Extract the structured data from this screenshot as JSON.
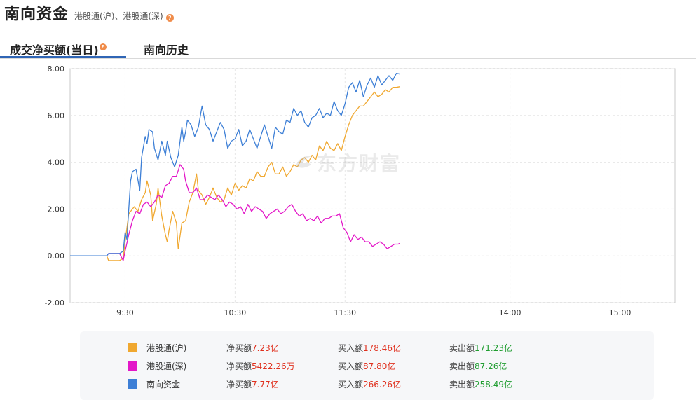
{
  "header": {
    "title": "南向资金",
    "subtitle": "港股通(沪)、港股通(深)"
  },
  "tabs": [
    {
      "label": "成交净买额(当日)",
      "active": true
    },
    {
      "label": "南向历史",
      "active": false
    }
  ],
  "watermark": "东方财富",
  "colors": {
    "sh": "#f0a830",
    "sz": "#e318c8",
    "total": "#3d7fd6",
    "accent": "#2f65b5",
    "up": "#e0301e",
    "down": "#1f9d30"
  },
  "chart_data": {
    "type": "line",
    "ylim": [
      -2,
      8
    ],
    "yticks": [
      "8.00",
      "6.00",
      "4.00",
      "2.00",
      "0.00",
      "-2.00"
    ],
    "xticks": [
      "9:30",
      "10:30",
      "11:30",
      "14:00",
      "15:00"
    ],
    "x_note": "minutes of trading session: 0=9:00, 30=9:30 open, 180=12:00 lunch break (== 13:00), 240=14:00, 300=15:00, 330=end",
    "series": [
      {
        "name": "港股通(沪)",
        "color": "#f0a830",
        "points": [
          [
            0,
            0
          ],
          [
            20,
            0
          ],
          [
            21,
            -0.2
          ],
          [
            27,
            -0.2
          ],
          [
            29,
            -0.1
          ],
          [
            30,
            0.6
          ],
          [
            32,
            1.8
          ],
          [
            35,
            2.1
          ],
          [
            37,
            1.9
          ],
          [
            39,
            2.4
          ],
          [
            41,
            2.7
          ],
          [
            42,
            3.2
          ],
          [
            44,
            2.6
          ],
          [
            45,
            1.5
          ],
          [
            47,
            2.2
          ],
          [
            48,
            2.9
          ],
          [
            50,
            1.7
          ],
          [
            52,
            0.9
          ],
          [
            53,
            0.6
          ],
          [
            54,
            1.1
          ],
          [
            56,
            1.9
          ],
          [
            58,
            1.4
          ],
          [
            59,
            0.3
          ],
          [
            61,
            1.4
          ],
          [
            63,
            1.5
          ],
          [
            65,
            2.3
          ],
          [
            67,
            2.7
          ],
          [
            69,
            3.5
          ],
          [
            70,
            2.8
          ],
          [
            72,
            2.6
          ],
          [
            74,
            2.2
          ],
          [
            76,
            2.5
          ],
          [
            78,
            2.9
          ],
          [
            80,
            2.5
          ],
          [
            82,
            2.3
          ],
          [
            84,
            2.4
          ],
          [
            86,
            2.9
          ],
          [
            88,
            2.6
          ],
          [
            90,
            3.1
          ],
          [
            92,
            2.8
          ],
          [
            94,
            3.0
          ],
          [
            96,
            2.9
          ],
          [
            98,
            3.3
          ],
          [
            100,
            3.2
          ],
          [
            102,
            3.6
          ],
          [
            104,
            3.4
          ],
          [
            106,
            3.4
          ],
          [
            108,
            3.8
          ],
          [
            110,
            4.0
          ],
          [
            112,
            3.5
          ],
          [
            114,
            3.5
          ],
          [
            116,
            3.8
          ],
          [
            118,
            3.4
          ],
          [
            120,
            3.6
          ],
          [
            122,
            3.9
          ],
          [
            124,
            3.8
          ],
          [
            126,
            4.1
          ],
          [
            128,
            4.2
          ],
          [
            130,
            4.0
          ],
          [
            132,
            4.3
          ],
          [
            134,
            4.1
          ],
          [
            136,
            4.7
          ],
          [
            138,
            4.5
          ],
          [
            140,
            4.9
          ],
          [
            142,
            4.6
          ],
          [
            144,
            4.5
          ],
          [
            146,
            4.8
          ],
          [
            148,
            4.5
          ],
          [
            150,
            5.1
          ],
          [
            152,
            5.6
          ],
          [
            154,
            6.0
          ],
          [
            156,
            6.2
          ],
          [
            158,
            6.4
          ],
          [
            160,
            6.4
          ],
          [
            162,
            6.6
          ],
          [
            164,
            6.8
          ],
          [
            166,
            7.0
          ],
          [
            168,
            6.8
          ],
          [
            170,
            6.9
          ],
          [
            172,
            7.1
          ],
          [
            174,
            7.0
          ],
          [
            176,
            7.2
          ],
          [
            178,
            7.2
          ],
          [
            180,
            7.23
          ]
        ]
      },
      {
        "name": "港股通(深)",
        "color": "#e318c8",
        "points": [
          [
            0,
            0
          ],
          [
            20,
            0
          ],
          [
            21,
            0.1
          ],
          [
            27,
            0.1
          ],
          [
            29,
            -0.2
          ],
          [
            30,
            0.2
          ],
          [
            32,
            0.9
          ],
          [
            34,
            1.5
          ],
          [
            36,
            1.9
          ],
          [
            38,
            1.8
          ],
          [
            40,
            2.2
          ],
          [
            42,
            2.3
          ],
          [
            44,
            2.1
          ],
          [
            46,
            2.3
          ],
          [
            48,
            2.6
          ],
          [
            50,
            2.5
          ],
          [
            52,
            3.0
          ],
          [
            54,
            3.1
          ],
          [
            56,
            3.4
          ],
          [
            58,
            3.4
          ],
          [
            60,
            3.9
          ],
          [
            62,
            3.7
          ],
          [
            63,
            3.2
          ],
          [
            65,
            2.7
          ],
          [
            67,
            2.7
          ],
          [
            69,
            2.9
          ],
          [
            71,
            2.4
          ],
          [
            73,
            2.4
          ],
          [
            75,
            2.6
          ],
          [
            77,
            2.5
          ],
          [
            79,
            2.4
          ],
          [
            81,
            2.6
          ],
          [
            83,
            2.4
          ],
          [
            85,
            2.1
          ],
          [
            87,
            2.3
          ],
          [
            89,
            2.2
          ],
          [
            91,
            2.0
          ],
          [
            93,
            2.1
          ],
          [
            95,
            1.8
          ],
          [
            97,
            2.2
          ],
          [
            99,
            1.9
          ],
          [
            101,
            2.1
          ],
          [
            103,
            2.0
          ],
          [
            105,
            1.9
          ],
          [
            107,
            1.6
          ],
          [
            109,
            1.8
          ],
          [
            111,
            1.9
          ],
          [
            113,
            2.0
          ],
          [
            115,
            1.8
          ],
          [
            117,
            1.9
          ],
          [
            119,
            2.1
          ],
          [
            121,
            2.2
          ],
          [
            123,
            1.9
          ],
          [
            125,
            1.7
          ],
          [
            127,
            1.8
          ],
          [
            129,
            1.5
          ],
          [
            131,
            1.6
          ],
          [
            133,
            1.5
          ],
          [
            135,
            1.7
          ],
          [
            137,
            1.4
          ],
          [
            139,
            1.6
          ],
          [
            141,
            1.6
          ],
          [
            143,
            1.7
          ],
          [
            145,
            1.7
          ],
          [
            147,
            1.8
          ],
          [
            149,
            1.2
          ],
          [
            151,
            1.0
          ],
          [
            153,
            0.6
          ],
          [
            155,
            0.9
          ],
          [
            157,
            0.7
          ],
          [
            159,
            0.8
          ],
          [
            161,
            0.6
          ],
          [
            163,
            0.6
          ],
          [
            165,
            0.4
          ],
          [
            167,
            0.5
          ],
          [
            169,
            0.6
          ],
          [
            171,
            0.5
          ],
          [
            173,
            0.3
          ],
          [
            175,
            0.4
          ],
          [
            177,
            0.5
          ],
          [
            179,
            0.5
          ],
          [
            180,
            0.54
          ]
        ]
      },
      {
        "name": "南向资金",
        "color": "#3d7fd6",
        "points": [
          [
            0,
            0
          ],
          [
            20,
            0
          ],
          [
            21,
            0.1
          ],
          [
            27,
            0.1
          ],
          [
            29,
            0.2
          ],
          [
            30,
            1.0
          ],
          [
            31,
            0.7
          ],
          [
            32,
            2.0
          ],
          [
            33,
            3.2
          ],
          [
            34,
            3.6
          ],
          [
            36,
            3.7
          ],
          [
            38,
            2.8
          ],
          [
            39,
            4.2
          ],
          [
            41,
            5.1
          ],
          [
            42,
            4.8
          ],
          [
            43,
            5.4
          ],
          [
            45,
            5.3
          ],
          [
            46,
            4.6
          ],
          [
            48,
            4.1
          ],
          [
            50,
            4.9
          ],
          [
            52,
            4.3
          ],
          [
            53,
            4.9
          ],
          [
            55,
            4.2
          ],
          [
            57,
            3.8
          ],
          [
            59,
            4.3
          ],
          [
            61,
            5.5
          ],
          [
            62,
            4.9
          ],
          [
            63,
            5.3
          ],
          [
            64,
            5.8
          ],
          [
            66,
            5.6
          ],
          [
            68,
            5.1
          ],
          [
            70,
            5.5
          ],
          [
            72,
            6.4
          ],
          [
            74,
            5.6
          ],
          [
            76,
            5.4
          ],
          [
            78,
            4.9
          ],
          [
            80,
            5.3
          ],
          [
            82,
            5.7
          ],
          [
            84,
            5.4
          ],
          [
            86,
            4.6
          ],
          [
            88,
            4.9
          ],
          [
            90,
            5.0
          ],
          [
            92,
            5.4
          ],
          [
            94,
            4.7
          ],
          [
            96,
            4.9
          ],
          [
            98,
            5.4
          ],
          [
            100,
            5.0
          ],
          [
            102,
            4.6
          ],
          [
            104,
            5.1
          ],
          [
            106,
            5.6
          ],
          [
            108,
            5.1
          ],
          [
            110,
            4.6
          ],
          [
            112,
            5.5
          ],
          [
            114,
            5.3
          ],
          [
            116,
            5.2
          ],
          [
            118,
            5.8
          ],
          [
            120,
            5.7
          ],
          [
            122,
            6.3
          ],
          [
            124,
            6.0
          ],
          [
            126,
            6.2
          ],
          [
            128,
            5.7
          ],
          [
            130,
            5.5
          ],
          [
            132,
            5.9
          ],
          [
            134,
            6.0
          ],
          [
            136,
            6.3
          ],
          [
            138,
            5.9
          ],
          [
            140,
            6.1
          ],
          [
            142,
            6.0
          ],
          [
            144,
            6.6
          ],
          [
            146,
            6.2
          ],
          [
            148,
            6.0
          ],
          [
            150,
            6.5
          ],
          [
            152,
            7.2
          ],
          [
            154,
            7.4
          ],
          [
            156,
            7.0
          ],
          [
            158,
            7.5
          ],
          [
            160,
            6.8
          ],
          [
            162,
            7.3
          ],
          [
            164,
            7.6
          ],
          [
            166,
            7.2
          ],
          [
            168,
            7.7
          ],
          [
            170,
            7.3
          ],
          [
            172,
            7.5
          ],
          [
            174,
            7.7
          ],
          [
            176,
            7.5
          ],
          [
            178,
            7.8
          ],
          [
            180,
            7.77
          ]
        ]
      }
    ]
  },
  "legend": [
    {
      "name": "港股通(沪)",
      "color": "#f0a830",
      "net_label": "净买额",
      "net_value": "7.23亿",
      "buy_label": "买入额",
      "buy_value": "178.46亿",
      "sell_label": "卖出额",
      "sell_value": "171.23亿"
    },
    {
      "name": "港股通(深)",
      "color": "#e318c8",
      "net_label": "净买额",
      "net_value": "5422.26万",
      "buy_label": "买入额",
      "buy_value": "87.80亿",
      "sell_label": "卖出额",
      "sell_value": "87.26亿"
    },
    {
      "name": "南向资金",
      "color": "#3d7fd6",
      "net_label": "净买额",
      "net_value": "7.77亿",
      "buy_label": "买入额",
      "buy_value": "266.26亿",
      "sell_label": "卖出额",
      "sell_value": "258.49亿"
    }
  ]
}
